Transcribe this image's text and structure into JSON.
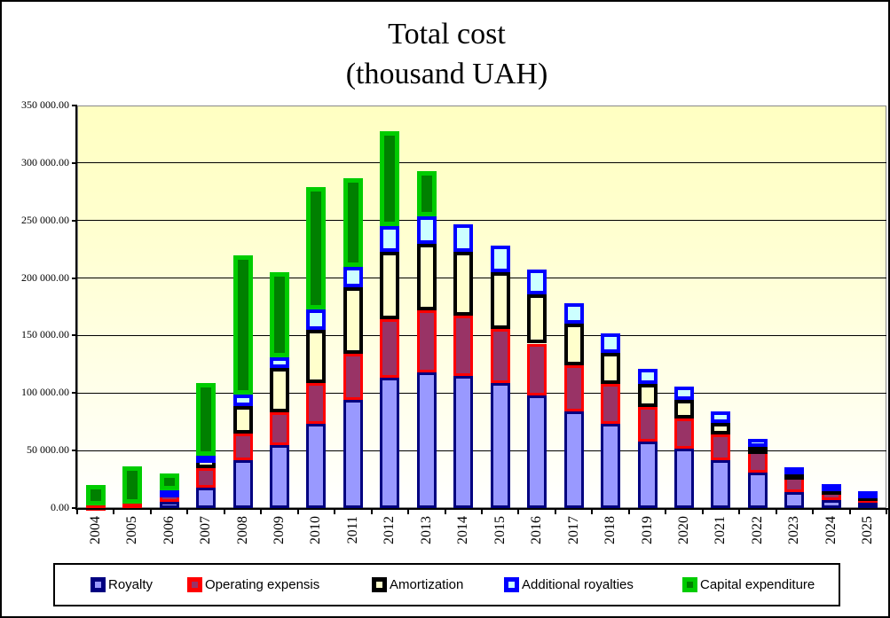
{
  "title": {
    "line1": "Total cost",
    "line2": "(thousand UAH)"
  },
  "chart_data": {
    "type": "bar",
    "stacked": true,
    "title": "Total cost (thousand UAH)",
    "xlabel": "",
    "ylabel": "",
    "ylim": [
      0,
      350000
    ],
    "ytick_step": 50000,
    "ytick_labels": [
      "0.00",
      "50 000.00",
      "100 000.00",
      "150 000.00",
      "200 000.00",
      "250 000.00",
      "300 000.00",
      "350 000.00"
    ],
    "grid": true,
    "legend_position": "bottom",
    "plot_background": "gradient pale-yellow to white",
    "categories": [
      "2004",
      "2005",
      "2006",
      "2007",
      "2008",
      "2009",
      "2010",
      "2011",
      "2012",
      "2013",
      "2014",
      "2015",
      "2016",
      "2017",
      "2018",
      "2019",
      "2020",
      "2021",
      "2022",
      "2023",
      "2024",
      "2025"
    ],
    "series": [
      {
        "name": "Royalty",
        "fill": "#9999FF",
        "border": "#000080",
        "values": [
          0,
          0,
          5500,
          18000,
          42000,
          55000,
          73000,
          94000,
          113000,
          118000,
          115000,
          109000,
          98000,
          84000,
          73000,
          58000,
          52000,
          42000,
          31000,
          14000,
          7000,
          4500
        ]
      },
      {
        "name": "Operating expensis",
        "fill": "#993366",
        "border": "#FF0000",
        "values": [
          2500,
          4000,
          6500,
          17000,
          23000,
          28000,
          36000,
          40000,
          51000,
          54000,
          52000,
          47000,
          45000,
          40000,
          35000,
          30000,
          26000,
          22000,
          18000,
          15500,
          10000,
          7000
        ]
      },
      {
        "name": "Amortization",
        "fill": "#FFFFCC",
        "border": "#000000",
        "values": [
          0,
          0,
          0,
          8000,
          24000,
          39000,
          46000,
          58000,
          59000,
          58000,
          56000,
          49000,
          43000,
          36000,
          27000,
          20000,
          16000,
          10000,
          4000,
          1500,
          500,
          500
        ]
      },
      {
        "name": "Additional royalties",
        "fill": "#CCFFFF",
        "border": "#0000FF",
        "values": [
          0,
          0,
          3500,
          2500,
          10000,
          9000,
          18000,
          18000,
          22000,
          24000,
          24000,
          23000,
          21000,
          18000,
          17000,
          13000,
          12000,
          10000,
          7000,
          4500,
          3500,
          3000
        ]
      },
      {
        "name": "Capital expenditure",
        "fill": "#008000",
        "border": "#00CC00",
        "values": [
          17500,
          32000,
          14500,
          63500,
          121000,
          74000,
          106000,
          77000,
          83000,
          39000,
          0,
          0,
          0,
          0,
          0,
          0,
          0,
          0,
          0,
          0,
          0,
          0
        ]
      }
    ]
  }
}
